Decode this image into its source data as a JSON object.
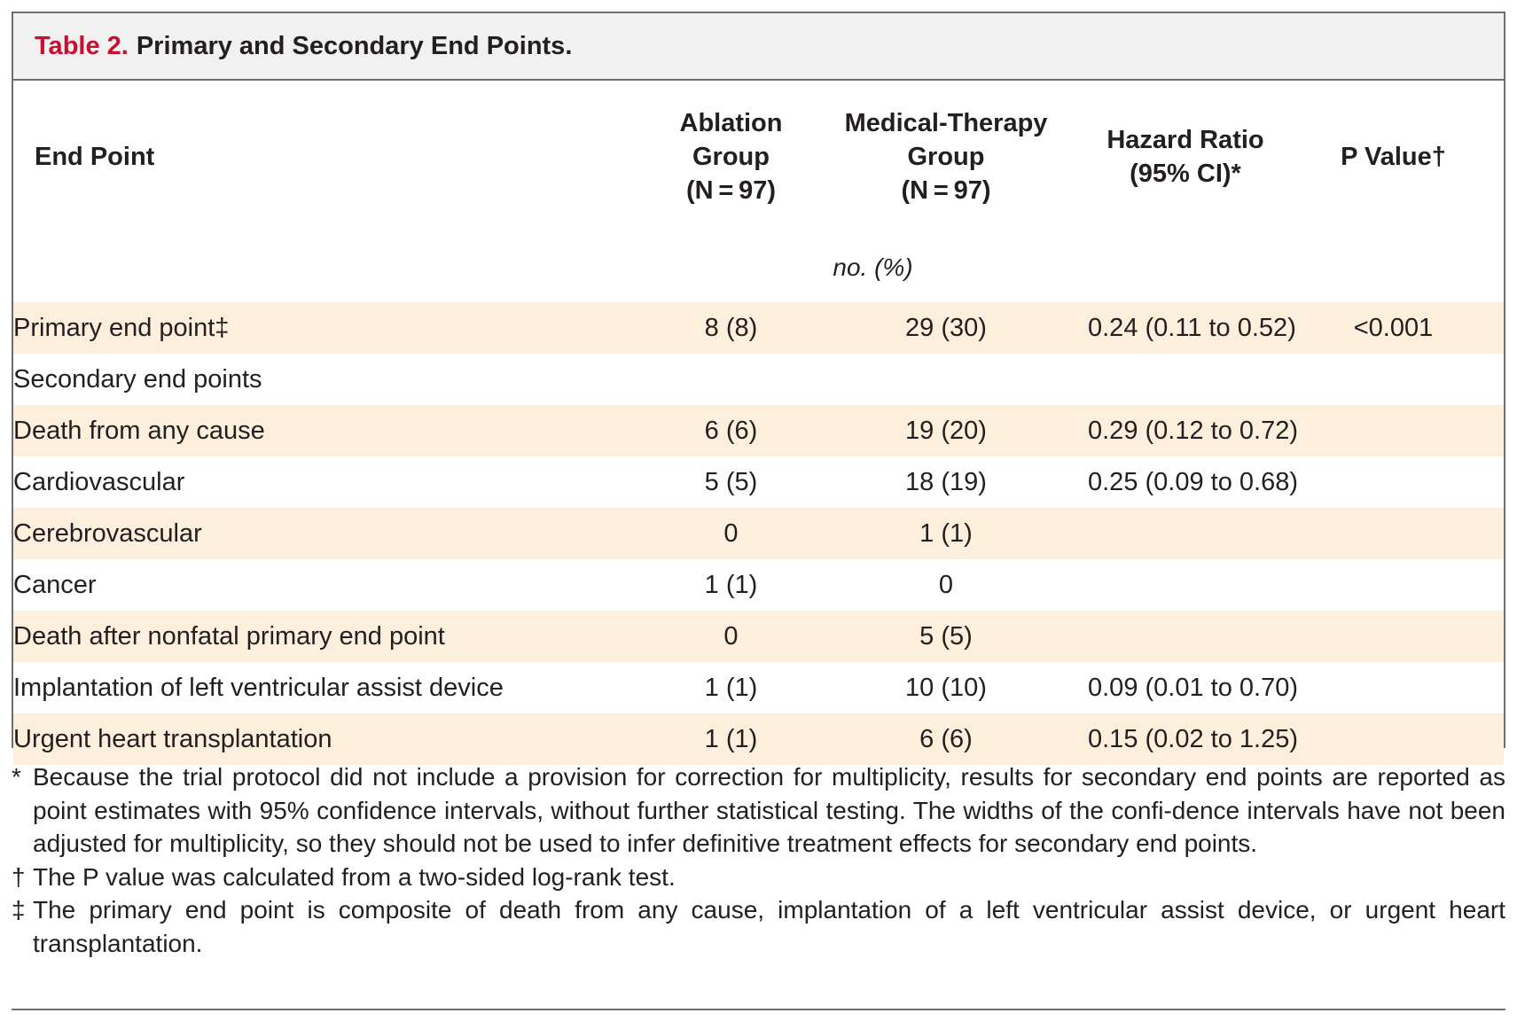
{
  "title": {
    "label": "Table 2.",
    "text": "Primary and Secondary End Points."
  },
  "columns": [
    {
      "line1": "End Point"
    },
    {
      "line1": "Ablation",
      "line2": "Group",
      "line3": "(N = 97)"
    },
    {
      "line1": "Medical-Therapy",
      "line2": "Group",
      "line3": "(N = 97)"
    },
    {
      "line1": "Hazard Ratio",
      "line2": "(95% CI)*"
    },
    {
      "line1": "P Value†"
    }
  ],
  "unit_label": "no. (%)",
  "rows": [
    {
      "label": "Primary end point‡",
      "level": 0,
      "shaded": true,
      "ablation": "8 (8)",
      "medical": "29 (30)",
      "hr": "0.24 (0.11 to 0.52)",
      "p": "<0.001"
    },
    {
      "label": "Secondary end points",
      "level": 0,
      "shaded": false,
      "ablation": "",
      "medical": "",
      "hr": "",
      "p": ""
    },
    {
      "label": "Death from any cause",
      "level": 1,
      "shaded": true,
      "ablation": "6 (6)",
      "medical": "19 (20)",
      "hr": "0.29 (0.12 to 0.72)",
      "p": ""
    },
    {
      "label": "Cardiovascular",
      "level": 2,
      "shaded": false,
      "ablation": "5 (5)",
      "medical": "18 (19)",
      "hr": "0.25 (0.09 to 0.68)",
      "p": ""
    },
    {
      "label": "Cerebrovascular",
      "level": 2,
      "shaded": true,
      "ablation": "0",
      "medical": "1 (1)",
      "hr": "",
      "p": ""
    },
    {
      "label": "Cancer",
      "level": 2,
      "shaded": false,
      "ablation": "1 (1)",
      "medical": "0",
      "hr": "",
      "p": ""
    },
    {
      "label": "Death after nonfatal primary end point",
      "level": 2,
      "shaded": true,
      "ablation": "0",
      "medical": "5 (5)",
      "hr": "",
      "p": ""
    },
    {
      "label": "Implantation of left ventricular assist device",
      "level": 1,
      "shaded": false,
      "ablation": "1 (1)",
      "medical": "10 (10)",
      "hr": "0.09 (0.01 to 0.70)",
      "p": ""
    },
    {
      "label": "Urgent heart transplantation",
      "level": 1,
      "shaded": true,
      "ablation": "1 (1)",
      "medical": "6 (6)",
      "hr": "0.15 (0.02 to 1.25)",
      "p": ""
    }
  ],
  "footnotes": [
    {
      "mark": "*",
      "text": "Because the trial protocol did not include a provision for correction for multiplicity, results for secondary end points are reported as point estimates with 95% confidence intervals, without further statistical testing. The widths of the confi-dence intervals have not been adjusted for multiplicity, so they should not be used to infer definitive treatment effects for secondary end points."
    },
    {
      "mark": "†",
      "text": "The P value was calculated from a two-sided log-rank test."
    },
    {
      "mark": "‡",
      "text": "The primary end point is composite of death from any cause, implantation of a left ventricular assist device, or urgent heart transplantation."
    }
  ]
}
